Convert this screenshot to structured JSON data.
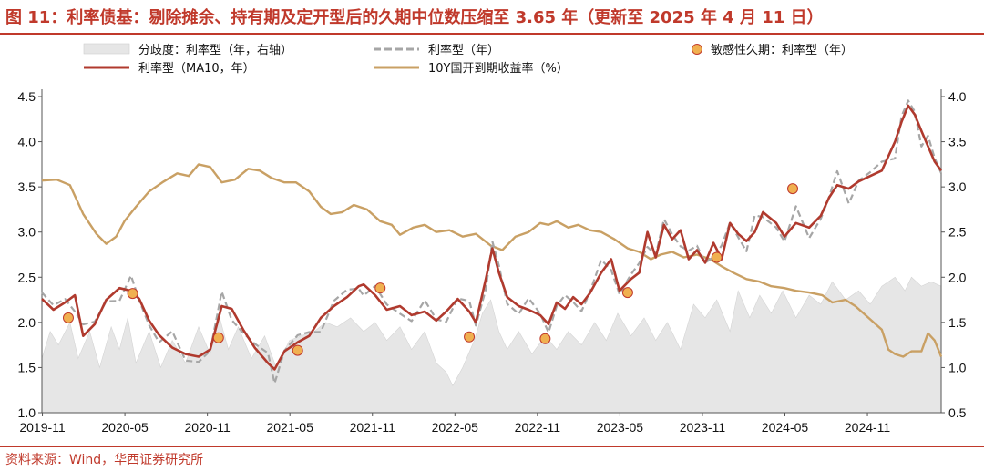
{
  "header": {
    "title": "图 11：利率债基：剔除摊余、持有期及定开型后的久期中位数压缩至 3.65 年（更新至 2025 年 4 月 11 日）"
  },
  "footer": {
    "source": "资料来源：Wind，华西证券研究所"
  },
  "chart_data": {
    "type": "line",
    "title": "",
    "xlabel": "",
    "ylabel": "",
    "y_left_range": [
      1.0,
      4.5
    ],
    "y_right_range": [
      0.5,
      4.0
    ],
    "y_left_ticks": [
      "1.0",
      "1.5",
      "2.0",
      "2.5",
      "3.0",
      "3.5",
      "4.0",
      "4.5"
    ],
    "y_right_ticks": [
      "0.5",
      "1.0",
      "1.5",
      "2.0",
      "2.5",
      "3.0",
      "3.5",
      "4.0"
    ],
    "x_range": [
      2019.83,
      2025.28
    ],
    "x_ticks": [
      {
        "label": "2019-11",
        "t": 2019.833
      },
      {
        "label": "2020-05",
        "t": 2020.333
      },
      {
        "label": "2020-11",
        "t": 2020.833
      },
      {
        "label": "2021-05",
        "t": 2021.333
      },
      {
        "label": "2021-11",
        "t": 2021.833
      },
      {
        "label": "2022-05",
        "t": 2022.333
      },
      {
        "label": "2022-11",
        "t": 2022.833
      },
      {
        "label": "2023-05",
        "t": 2023.333
      },
      {
        "label": "2023-11",
        "t": 2023.833
      },
      {
        "label": "2024-05",
        "t": 2024.333
      },
      {
        "label": "2024-11",
        "t": 2024.833
      }
    ],
    "grid": false,
    "legend_position": "top",
    "legend": [
      {
        "label": "分歧度：利率型（年，右轴）",
        "kind": "area",
        "color": "#e6e6e6"
      },
      {
        "label": "利率型（年）",
        "kind": "dash",
        "color": "#a6a6a6"
      },
      {
        "label": "敏感性久期：利率型（年）",
        "kind": "dot",
        "color": "#f0b050"
      },
      {
        "label": "利率型（MA10，年）",
        "kind": "line",
        "color": "#b03a2e"
      },
      {
        "label": "10Y国开到期收益率（%）",
        "kind": "line",
        "color": "#c9a064"
      }
    ],
    "series": [
      {
        "name": "利率型（MA10，年）",
        "axis": "left",
        "color": "#b03a2e",
        "points": [
          [
            2019.83,
            2.26
          ],
          [
            2019.9,
            2.14
          ],
          [
            2019.97,
            2.22
          ],
          [
            2020.03,
            2.3
          ],
          [
            2020.08,
            1.85
          ],
          [
            2020.15,
            1.98
          ],
          [
            2020.22,
            2.25
          ],
          [
            2020.3,
            2.38
          ],
          [
            2020.37,
            2.35
          ],
          [
            2020.42,
            2.26
          ],
          [
            2020.48,
            2.02
          ],
          [
            2020.54,
            1.86
          ],
          [
            2020.62,
            1.72
          ],
          [
            2020.7,
            1.65
          ],
          [
            2020.78,
            1.62
          ],
          [
            2020.85,
            1.7
          ],
          [
            2020.92,
            2.18
          ],
          [
            2020.98,
            2.15
          ],
          [
            2021.05,
            1.92
          ],
          [
            2021.12,
            1.72
          ],
          [
            2021.2,
            1.55
          ],
          [
            2021.24,
            1.48
          ],
          [
            2021.3,
            1.68
          ],
          [
            2021.38,
            1.78
          ],
          [
            2021.45,
            1.85
          ],
          [
            2021.52,
            2.05
          ],
          [
            2021.6,
            2.18
          ],
          [
            2021.68,
            2.28
          ],
          [
            2021.75,
            2.4
          ],
          [
            2021.78,
            2.42
          ],
          [
            2021.85,
            2.3
          ],
          [
            2021.92,
            2.14
          ],
          [
            2022.0,
            2.18
          ],
          [
            2022.07,
            2.08
          ],
          [
            2022.15,
            2.12
          ],
          [
            2022.22,
            2.02
          ],
          [
            2022.28,
            2.12
          ],
          [
            2022.35,
            2.26
          ],
          [
            2022.42,
            2.12
          ],
          [
            2022.46,
            2.0
          ],
          [
            2022.52,
            2.48
          ],
          [
            2022.56,
            2.82
          ],
          [
            2022.6,
            2.55
          ],
          [
            2022.65,
            2.28
          ],
          [
            2022.72,
            2.18
          ],
          [
            2022.78,
            2.14
          ],
          [
            2022.85,
            2.08
          ],
          [
            2022.9,
            1.98
          ],
          [
            2022.95,
            2.22
          ],
          [
            2023.0,
            2.15
          ],
          [
            2023.05,
            2.28
          ],
          [
            2023.1,
            2.2
          ],
          [
            2023.15,
            2.32
          ],
          [
            2023.22,
            2.55
          ],
          [
            2023.28,
            2.7
          ],
          [
            2023.33,
            2.35
          ],
          [
            2023.4,
            2.48
          ],
          [
            2023.45,
            2.55
          ],
          [
            2023.5,
            3.0
          ],
          [
            2023.55,
            2.72
          ],
          [
            2023.6,
            3.08
          ],
          [
            2023.65,
            2.92
          ],
          [
            2023.7,
            3.02
          ],
          [
            2023.75,
            2.7
          ],
          [
            2023.8,
            2.8
          ],
          [
            2023.85,
            2.66
          ],
          [
            2023.9,
            2.88
          ],
          [
            2023.95,
            2.7
          ],
          [
            2024.0,
            3.1
          ],
          [
            2024.05,
            2.98
          ],
          [
            2024.1,
            2.9
          ],
          [
            2024.15,
            3.0
          ],
          [
            2024.2,
            3.22
          ],
          [
            2024.28,
            3.1
          ],
          [
            2024.33,
            2.95
          ],
          [
            2024.4,
            3.1
          ],
          [
            2024.48,
            3.05
          ],
          [
            2024.55,
            3.18
          ],
          [
            2024.6,
            3.38
          ],
          [
            2024.65,
            3.52
          ],
          [
            2024.72,
            3.48
          ],
          [
            2024.78,
            3.56
          ],
          [
            2024.85,
            3.62
          ],
          [
            2024.92,
            3.68
          ],
          [
            2025.0,
            4.0
          ],
          [
            2025.04,
            4.22
          ],
          [
            2025.08,
            4.4
          ],
          [
            2025.12,
            4.3
          ],
          [
            2025.16,
            4.12
          ],
          [
            2025.2,
            3.95
          ],
          [
            2025.24,
            3.78
          ],
          [
            2025.28,
            3.68
          ]
        ]
      },
      {
        "name": "10Y国开到期收益率（%）",
        "axis": "left",
        "color": "#c9a064",
        "points": [
          [
            2019.83,
            3.57
          ],
          [
            2019.92,
            3.58
          ],
          [
            2020.0,
            3.52
          ],
          [
            2020.08,
            3.2
          ],
          [
            2020.16,
            2.98
          ],
          [
            2020.22,
            2.87
          ],
          [
            2020.28,
            2.95
          ],
          [
            2020.33,
            3.12
          ],
          [
            2020.4,
            3.28
          ],
          [
            2020.48,
            3.45
          ],
          [
            2020.56,
            3.55
          ],
          [
            2020.65,
            3.65
          ],
          [
            2020.72,
            3.62
          ],
          [
            2020.78,
            3.75
          ],
          [
            2020.85,
            3.72
          ],
          [
            2020.92,
            3.55
          ],
          [
            2021.0,
            3.58
          ],
          [
            2021.08,
            3.7
          ],
          [
            2021.15,
            3.68
          ],
          [
            2021.22,
            3.6
          ],
          [
            2021.3,
            3.55
          ],
          [
            2021.37,
            3.55
          ],
          [
            2021.45,
            3.45
          ],
          [
            2021.52,
            3.28
          ],
          [
            2021.58,
            3.2
          ],
          [
            2021.65,
            3.22
          ],
          [
            2021.72,
            3.3
          ],
          [
            2021.8,
            3.25
          ],
          [
            2021.88,
            3.12
          ],
          [
            2021.95,
            3.08
          ],
          [
            2022.0,
            2.97
          ],
          [
            2022.08,
            3.05
          ],
          [
            2022.15,
            3.08
          ],
          [
            2022.22,
            3.0
          ],
          [
            2022.3,
            3.02
          ],
          [
            2022.38,
            2.95
          ],
          [
            2022.46,
            2.98
          ],
          [
            2022.55,
            2.85
          ],
          [
            2022.62,
            2.8
          ],
          [
            2022.7,
            2.95
          ],
          [
            2022.78,
            3.0
          ],
          [
            2022.85,
            3.1
          ],
          [
            2022.9,
            3.08
          ],
          [
            2022.95,
            3.12
          ],
          [
            2023.02,
            3.05
          ],
          [
            2023.08,
            3.08
          ],
          [
            2023.15,
            3.02
          ],
          [
            2023.22,
            3.0
          ],
          [
            2023.3,
            2.92
          ],
          [
            2023.38,
            2.82
          ],
          [
            2023.45,
            2.78
          ],
          [
            2023.52,
            2.7
          ],
          [
            2023.58,
            2.75
          ],
          [
            2023.65,
            2.78
          ],
          [
            2023.72,
            2.72
          ],
          [
            2023.8,
            2.75
          ],
          [
            2023.88,
            2.7
          ],
          [
            2023.95,
            2.62
          ],
          [
            2024.02,
            2.55
          ],
          [
            2024.1,
            2.48
          ],
          [
            2024.18,
            2.45
          ],
          [
            2024.25,
            2.4
          ],
          [
            2024.33,
            2.38
          ],
          [
            2024.4,
            2.35
          ],
          [
            2024.48,
            2.33
          ],
          [
            2024.56,
            2.3
          ],
          [
            2024.62,
            2.22
          ],
          [
            2024.7,
            2.25
          ],
          [
            2024.76,
            2.18
          ],
          [
            2024.84,
            2.05
          ],
          [
            2024.92,
            1.92
          ],
          [
            2024.96,
            1.7
          ],
          [
            2025.0,
            1.65
          ],
          [
            2025.05,
            1.62
          ],
          [
            2025.1,
            1.68
          ],
          [
            2025.16,
            1.68
          ],
          [
            2025.2,
            1.88
          ],
          [
            2025.24,
            1.8
          ],
          [
            2025.28,
            1.62
          ]
        ]
      },
      {
        "name": "分歧度：利率型（年，右轴）",
        "axis": "right",
        "color": "#e6e6e6",
        "points": [
          [
            2019.83,
            1.1
          ],
          [
            2019.88,
            1.4
          ],
          [
            2019.93,
            1.25
          ],
          [
            2020.0,
            1.5
          ],
          [
            2020.05,
            1.1
          ],
          [
            2020.12,
            1.4
          ],
          [
            2020.18,
            1.0
          ],
          [
            2020.25,
            1.45
          ],
          [
            2020.3,
            1.2
          ],
          [
            2020.35,
            1.55
          ],
          [
            2020.4,
            1.05
          ],
          [
            2020.48,
            1.4
          ],
          [
            2020.55,
            1.0
          ],
          [
            2020.62,
            1.3
          ],
          [
            2020.7,
            1.05
          ],
          [
            2020.78,
            1.45
          ],
          [
            2020.85,
            1.15
          ],
          [
            2020.9,
            1.6
          ],
          [
            2020.96,
            1.2
          ],
          [
            2021.02,
            1.45
          ],
          [
            2021.1,
            1.1
          ],
          [
            2021.18,
            1.35
          ],
          [
            2021.25,
            1.0
          ],
          [
            2021.33,
            1.3
          ],
          [
            2021.4,
            1.35
          ],
          [
            2021.48,
            1.4
          ],
          [
            2021.55,
            1.5
          ],
          [
            2021.62,
            1.45
          ],
          [
            2021.7,
            1.55
          ],
          [
            2021.78,
            1.4
          ],
          [
            2021.85,
            1.5
          ],
          [
            2021.92,
            1.3
          ],
          [
            2022.0,
            1.45
          ],
          [
            2022.07,
            1.2
          ],
          [
            2022.15,
            1.4
          ],
          [
            2022.22,
            1.05
          ],
          [
            2022.28,
            0.95
          ],
          [
            2022.32,
            0.8
          ],
          [
            2022.38,
            1.0
          ],
          [
            2022.45,
            1.3
          ],
          [
            2022.5,
            1.6
          ],
          [
            2022.55,
            1.75
          ],
          [
            2022.6,
            1.4
          ],
          [
            2022.65,
            1.2
          ],
          [
            2022.72,
            1.4
          ],
          [
            2022.8,
            1.15
          ],
          [
            2022.88,
            1.35
          ],
          [
            2022.95,
            1.2
          ],
          [
            2023.02,
            1.4
          ],
          [
            2023.1,
            1.25
          ],
          [
            2023.18,
            1.5
          ],
          [
            2023.25,
            1.3
          ],
          [
            2023.32,
            1.6
          ],
          [
            2023.4,
            1.35
          ],
          [
            2023.48,
            1.55
          ],
          [
            2023.55,
            1.3
          ],
          [
            2023.62,
            1.5
          ],
          [
            2023.7,
            1.2
          ],
          [
            2023.78,
            1.7
          ],
          [
            2023.85,
            1.55
          ],
          [
            2023.92,
            1.75
          ],
          [
            2024.0,
            1.4
          ],
          [
            2024.05,
            1.85
          ],
          [
            2024.12,
            1.55
          ],
          [
            2024.18,
            1.8
          ],
          [
            2024.25,
            1.6
          ],
          [
            2024.32,
            1.85
          ],
          [
            2024.4,
            1.55
          ],
          [
            2024.48,
            1.8
          ],
          [
            2024.55,
            1.7
          ],
          [
            2024.62,
            1.95
          ],
          [
            2024.7,
            1.75
          ],
          [
            2024.78,
            1.85
          ],
          [
            2024.85,
            1.7
          ],
          [
            2024.92,
            1.9
          ],
          [
            2025.0,
            2.0
          ],
          [
            2025.06,
            1.85
          ],
          [
            2025.1,
            2.0
          ],
          [
            2025.16,
            1.9
          ],
          [
            2025.22,
            1.95
          ],
          [
            2025.28,
            1.9
          ]
        ]
      }
    ],
    "sensitivity_points": [
      [
        2019.99,
        2.05
      ],
      [
        2020.38,
        2.32
      ],
      [
        2020.9,
        1.83
      ],
      [
        2021.38,
        1.69
      ],
      [
        2021.88,
        2.38
      ],
      [
        2022.42,
        1.84
      ],
      [
        2022.88,
        1.82
      ],
      [
        2023.38,
        2.33
      ],
      [
        2023.92,
        2.72
      ],
      [
        2024.38,
        3.48
      ]
    ]
  }
}
